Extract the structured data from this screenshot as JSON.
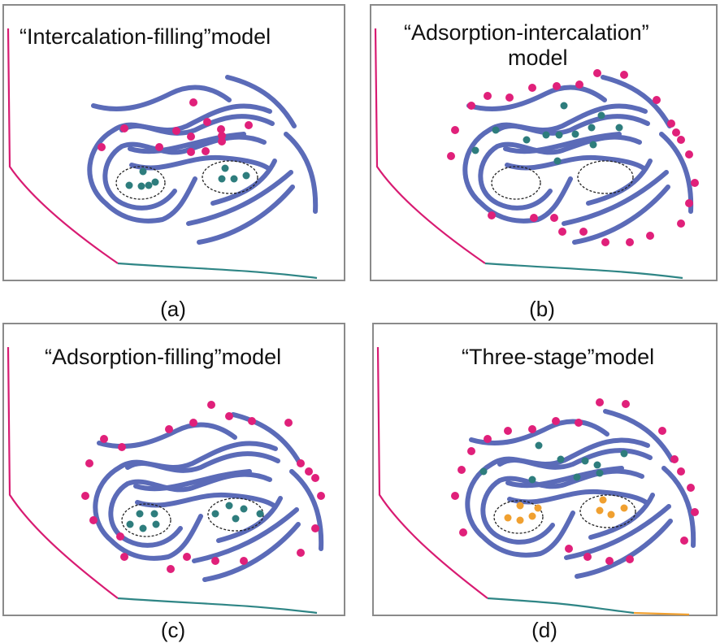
{
  "colors": {
    "layer": "#5b6bb8",
    "adsorbed": "#e0207a",
    "intercalated": "#2e7d7d",
    "filled_stage": "#f0a030",
    "curve_first": "#d81b72",
    "curve_second": "#2e8585",
    "curve_third": "#f0a030"
  },
  "panels": [
    {
      "id": "a",
      "title": "“Intercalation-filling”model",
      "caption": "(a)"
    },
    {
      "id": "b",
      "title_line1": "“Adsorption-intercalation”",
      "title_line2": "model",
      "caption": "(b)"
    },
    {
      "id": "c",
      "title": "“Adsorption-filling”model",
      "caption": "(c)"
    },
    {
      "id": "d",
      "title": "“Three-stage”model",
      "caption": "(d)"
    }
  ]
}
